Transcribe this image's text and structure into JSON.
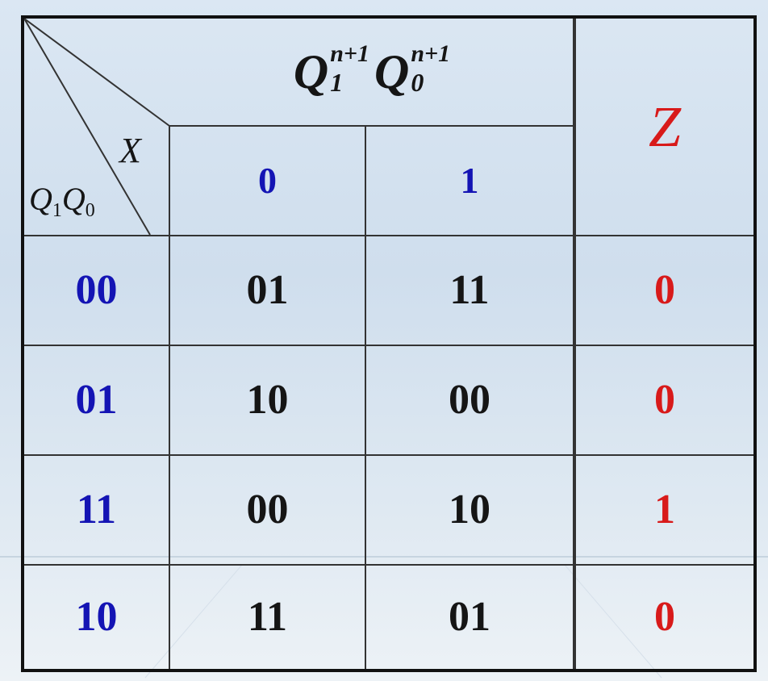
{
  "header": {
    "next_state_q": "Q",
    "next_state_sup": "n+1",
    "q1_sub": "1",
    "q0_sub": "0",
    "input_var": "X",
    "current_state_q": "Q",
    "output_label": "Z"
  },
  "input_columns": [
    "0",
    "1"
  ],
  "rows": [
    {
      "state": "00",
      "next_x0": "01",
      "next_x1": "11",
      "z": "0"
    },
    {
      "state": "01",
      "next_x0": "10",
      "next_x1": "00",
      "z": "0"
    },
    {
      "state": "11",
      "next_x0": "00",
      "next_x1": "10",
      "z": "1"
    },
    {
      "state": "10",
      "next_x0": "11",
      "next_x1": "01",
      "z": "0"
    }
  ],
  "colors": {
    "state": "#1414b4",
    "next": "#151515",
    "output": "#d81a1a",
    "grid": "#333333"
  }
}
